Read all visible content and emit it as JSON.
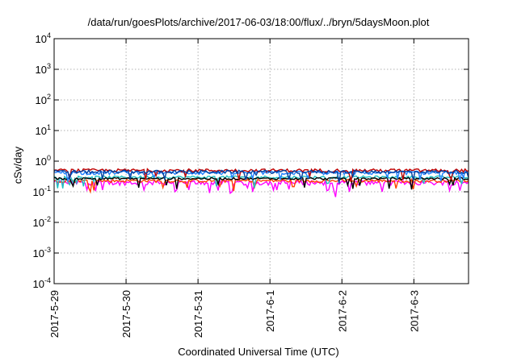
{
  "chart_data": {
    "type": "line",
    "title": "/data/run/goesPlots/archive/2017-06-03/18:00/flux/../bryn/5daysMoon.plot",
    "xlabel": "Coordinated Universal Time (UTC)",
    "ylabel": "cSv/day",
    "yscale": "log",
    "ylim": [
      0.0001,
      10000
    ],
    "xlim_days": [
      0,
      5.76
    ],
    "ytick_labels": [
      {
        "base": "10",
        "exp": "4"
      },
      {
        "base": "10",
        "exp": "3"
      },
      {
        "base": "10",
        "exp": "2"
      },
      {
        "base": "10",
        "exp": "1"
      },
      {
        "base": "10",
        "exp": "0"
      },
      {
        "base": "10",
        "exp": "-1"
      },
      {
        "base": "10",
        "exp": "-2"
      },
      {
        "base": "10",
        "exp": "-3"
      },
      {
        "base": "10",
        "exp": "-4"
      }
    ],
    "xtick_labels": [
      "2017-5-29",
      "2017-5-30",
      "2017-5-31",
      "2017-6-1",
      "2017-6-2",
      "2017-6-3"
    ],
    "grid": true,
    "series": [
      {
        "color": "#ff00ff",
        "base": 0.2,
        "amp": 0.18
      },
      {
        "color": "#ff4000",
        "base": 0.23,
        "amp": 0.12
      },
      {
        "color": "#20c0c0",
        "base": 0.3,
        "amp": 0.1
      },
      {
        "color": "#000000",
        "base": 0.27,
        "amp": 0.08
      },
      {
        "color": "#2080ff",
        "base": 0.42,
        "amp": 0.14
      },
      {
        "color": "#c00000",
        "base": 0.5,
        "amp": 0.12
      },
      {
        "color": "#0040a0",
        "base": 0.45,
        "amp": 0.12
      }
    ]
  }
}
